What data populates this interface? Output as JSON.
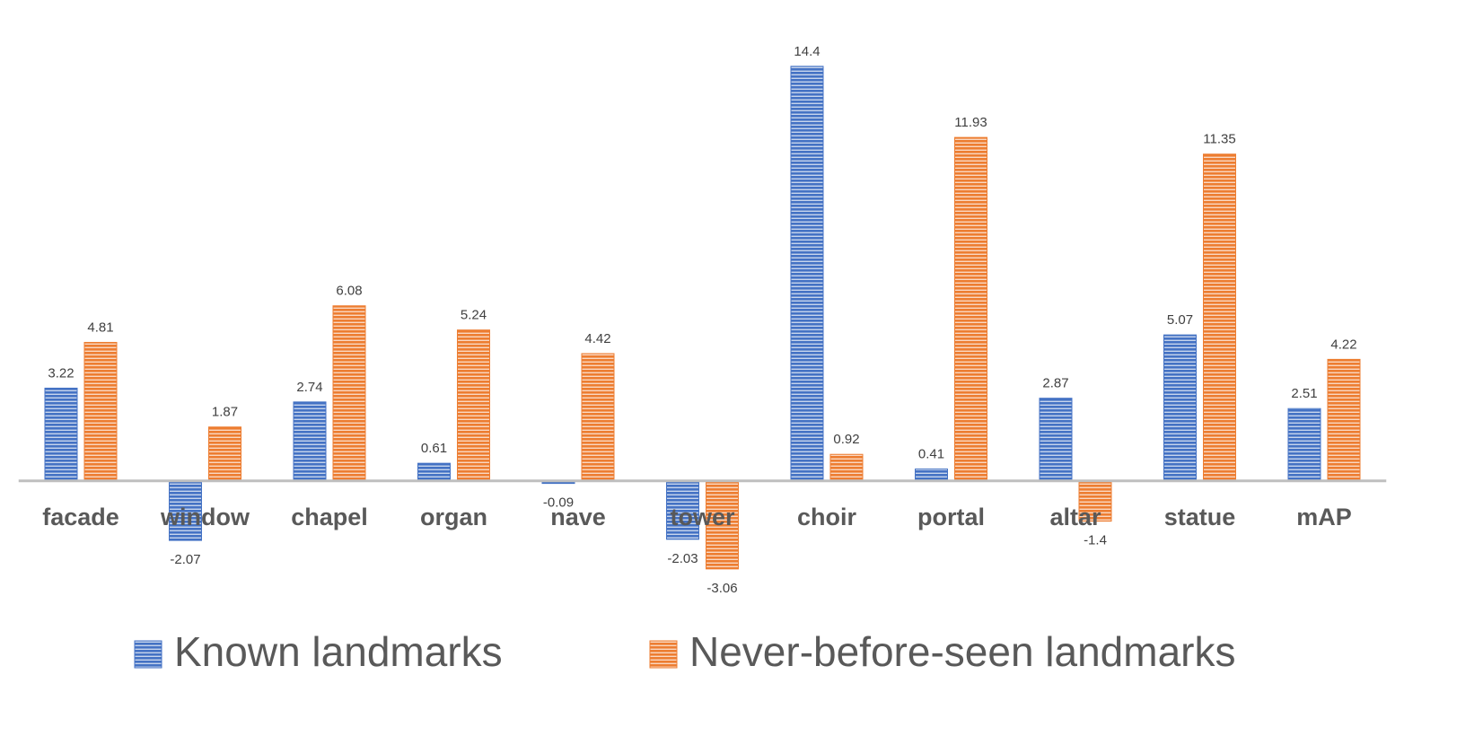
{
  "chart_data": {
    "type": "bar",
    "categories": [
      "facade",
      "window",
      "chapel",
      "organ",
      "nave",
      "tower",
      "choir",
      "portal",
      "altar",
      "statue",
      "mAP"
    ],
    "series": [
      {
        "name": "Known landmarks",
        "color": "#4472c4",
        "values": [
          3.22,
          -2.07,
          2.74,
          0.61,
          -0.09,
          -2.03,
          14.4,
          0.41,
          2.87,
          5.07,
          2.51
        ]
      },
      {
        "name": "Never-before-seen landmarks",
        "color": "#ed7d31",
        "values": [
          4.81,
          1.87,
          6.08,
          5.24,
          4.42,
          -3.06,
          0.92,
          11.93,
          -1.4,
          11.35,
          4.22
        ]
      }
    ],
    "ylim": [
      -4,
      16
    ],
    "legend": "bottom"
  }
}
